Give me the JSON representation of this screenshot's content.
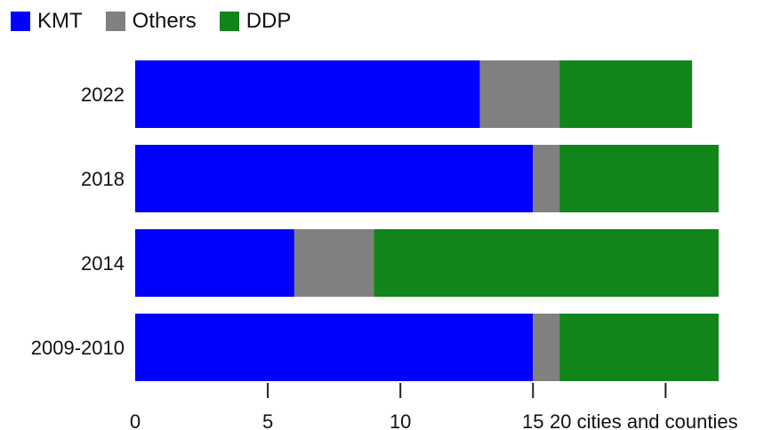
{
  "chart_data": {
    "type": "bar",
    "orientation": "horizontal",
    "stacked": true,
    "categories": [
      "2022",
      "2018",
      "2014",
      "2009-2010"
    ],
    "series": [
      {
        "name": "KMT",
        "color": "#0000ff",
        "values": [
          13,
          15,
          6,
          15
        ]
      },
      {
        "name": "Others",
        "color": "#808080",
        "values": [
          3,
          1,
          3,
          1
        ]
      },
      {
        "name": "DDP",
        "color": "#11841a",
        "values": [
          5,
          6,
          13,
          6
        ]
      }
    ],
    "xlim": [
      0,
      22
    ],
    "xticks": [
      0,
      5,
      10,
      15
    ],
    "xtick_labels": [
      "0",
      "5",
      "10",
      "15"
    ],
    "xlabel": "20 cities and counties",
    "legend_position": "top-left",
    "grid": false
  }
}
